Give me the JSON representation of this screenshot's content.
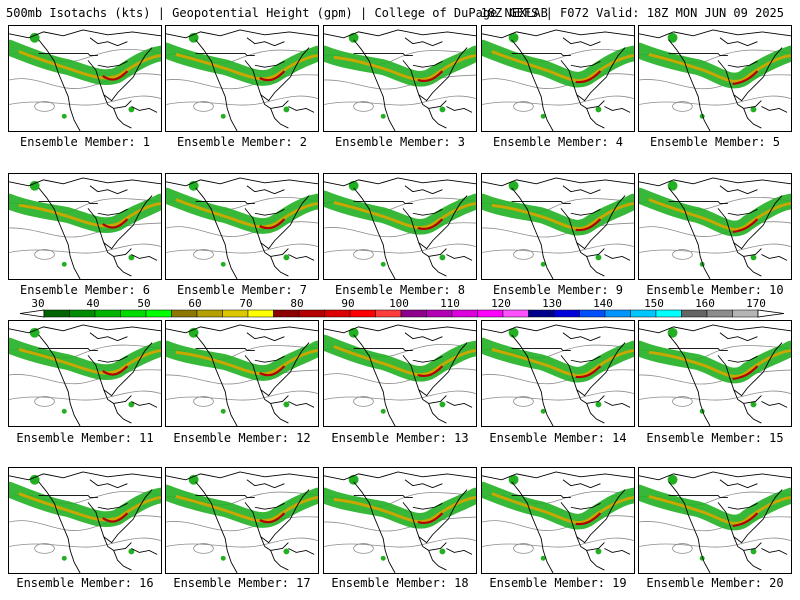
{
  "header": {
    "left": "500mb Isotachs (kts) | Geopotential Height (gpm) | College of DuPage NEXLAB",
    "right": "18Z GEFS | F072 Valid: 18Z MON JUN 09 2025"
  },
  "panels": [
    {
      "label": "Ensemble Member: 1"
    },
    {
      "label": "Ensemble Member: 2"
    },
    {
      "label": "Ensemble Member: 3"
    },
    {
      "label": "Ensemble Member: 4"
    },
    {
      "label": "Ensemble Member: 5"
    },
    {
      "label": "Ensemble Member: 6"
    },
    {
      "label": "Ensemble Member: 7"
    },
    {
      "label": "Ensemble Member: 8"
    },
    {
      "label": "Ensemble Member: 9"
    },
    {
      "label": "Ensemble Member: 10"
    },
    {
      "label": "Ensemble Member: 11"
    },
    {
      "label": "Ensemble Member: 12"
    },
    {
      "label": "Ensemble Member: 13"
    },
    {
      "label": "Ensemble Member: 14"
    },
    {
      "label": "Ensemble Member: 15"
    },
    {
      "label": "Ensemble Member: 16"
    },
    {
      "label": "Ensemble Member: 17"
    },
    {
      "label": "Ensemble Member: 18"
    },
    {
      "label": "Ensemble Member: 19"
    },
    {
      "label": "Ensemble Member: 20"
    }
  ],
  "colorbar": {
    "labels": [
      "30",
      "40",
      "50",
      "60",
      "70",
      "80",
      "90",
      "100",
      "110",
      "120",
      "130",
      "140",
      "150",
      "160",
      "170"
    ],
    "colors": [
      "#006400",
      "#008c00",
      "#00b400",
      "#00dc00",
      "#00ff00",
      "#8c7800",
      "#b4a000",
      "#dcc800",
      "#ffff00",
      "#8c0000",
      "#b40000",
      "#dc0000",
      "#ff0000",
      "#ff3c3c",
      "#8c008c",
      "#b400b4",
      "#dc00dc",
      "#ff00ff",
      "#ff50ff",
      "#00008c",
      "#0000dc",
      "#0050ff",
      "#0096ff",
      "#00c8ff",
      "#00ffff",
      "#646464",
      "#8c8c8c",
      "#b4b4b4"
    ]
  },
  "map_colors": {
    "jet_green": "#22b022",
    "jet_core": "#c8a800",
    "jet_max": "#b40000",
    "height_contour": "#8c8c8c",
    "coast": "#000000"
  }
}
